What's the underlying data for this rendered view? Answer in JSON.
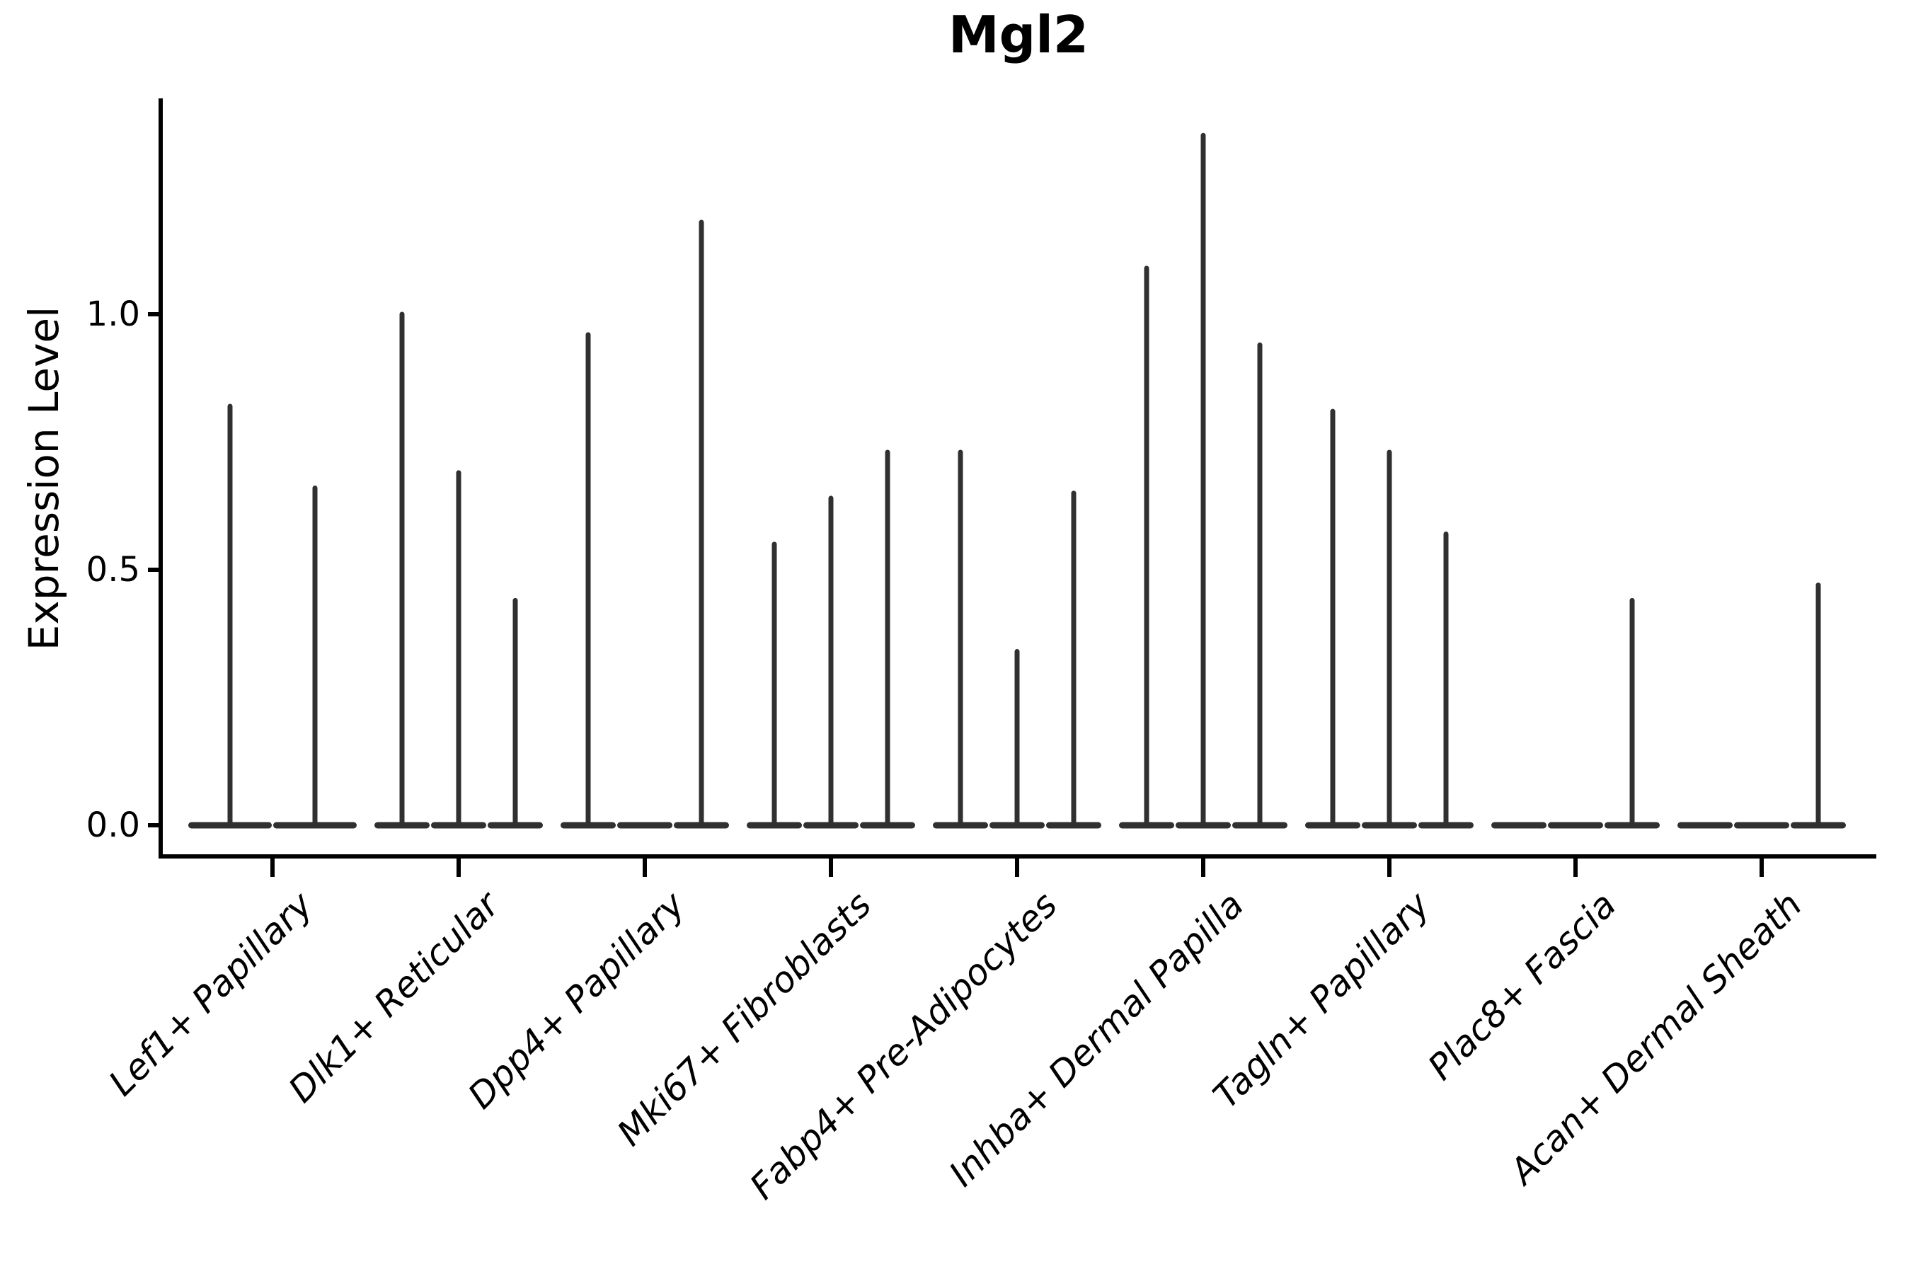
{
  "title": "Mgl2",
  "y_axis": {
    "label": "Expression Level",
    "tick_labels": [
      "0.0",
      "0.5",
      "1.0"
    ],
    "tick_values": [
      0.0,
      0.5,
      1.0
    ]
  },
  "x_axis": {
    "categories": [
      "Lef1+ Papillary",
      "Dlk1+ Reticular",
      "Dpp4+ Papillary",
      "Mki67+ Fibroblasts",
      "Fabp4+ Pre-Adipocytes",
      "Inhba+ Dermal Papilla",
      "Tagln+ Papillary",
      "Plac8+ Fascia",
      "Acan+ Dermal Sheath"
    ]
  },
  "style": {
    "violin_color": "#303030",
    "axis_color": "#000000",
    "background": "#ffffff"
  },
  "chart_data": {
    "type": "violin",
    "title": "Mgl2",
    "xlabel": "",
    "ylabel": "Expression Level",
    "ylim": [
      -0.06,
      1.42
    ],
    "y_ticks": [
      0.0,
      0.5,
      1.0
    ],
    "y_tick_labels": [
      "0.0",
      "0.5",
      "1.0"
    ],
    "grid": false,
    "legend": null,
    "x_tick_rotation_deg": 45,
    "categories": [
      "Lef1+ Papillary",
      "Dlk1+ Reticular",
      "Dpp4+ Papillary",
      "Mki67+ Fibroblasts",
      "Fabp4+ Pre-Adipocytes",
      "Inhba+ Dermal Papilla",
      "Tagln+ Papillary",
      "Plac8+ Fascia",
      "Acan+ Dermal Sheath"
    ],
    "groups": [
      {
        "category": "Lef1+ Papillary",
        "violins": [
          {
            "offset": -60,
            "halfwidth": 59,
            "peak": 0.82
          },
          {
            "offset": 60,
            "halfwidth": 59,
            "peak": 0.66
          }
        ]
      },
      {
        "category": "Dlk1+ Reticular",
        "violins": [
          {
            "offset": -80,
            "halfwidth": 39,
            "peak": 1.0
          },
          {
            "offset": 0,
            "halfwidth": 39,
            "peak": 0.69
          },
          {
            "offset": 80,
            "halfwidth": 39,
            "peak": 0.44
          }
        ]
      },
      {
        "category": "Dpp4+ Papillary",
        "violins": [
          {
            "offset": -80,
            "halfwidth": 39,
            "peak": 0.96
          },
          {
            "offset": 0,
            "halfwidth": 39,
            "peak": 0.0
          },
          {
            "offset": 80,
            "halfwidth": 39,
            "peak": 1.18
          }
        ]
      },
      {
        "category": "Mki67+ Fibroblasts",
        "violins": [
          {
            "offset": -80,
            "halfwidth": 39,
            "peak": 0.55
          },
          {
            "offset": 0,
            "halfwidth": 39,
            "peak": 0.64
          },
          {
            "offset": 80,
            "halfwidth": 39,
            "peak": 0.73
          }
        ]
      },
      {
        "category": "Fabp4+ Pre-Adipocytes",
        "violins": [
          {
            "offset": -80,
            "halfwidth": 39,
            "peak": 0.73
          },
          {
            "offset": 0,
            "halfwidth": 39,
            "peak": 0.34
          },
          {
            "offset": 80,
            "halfwidth": 39,
            "peak": 0.65
          }
        ]
      },
      {
        "category": "Inhba+ Dermal Papilla",
        "violins": [
          {
            "offset": -80,
            "halfwidth": 39,
            "peak": 1.09
          },
          {
            "offset": 0,
            "halfwidth": 39,
            "peak": 1.35
          },
          {
            "offset": 80,
            "halfwidth": 39,
            "peak": 0.94
          }
        ]
      },
      {
        "category": "Tagln+ Papillary",
        "violins": [
          {
            "offset": -80,
            "halfwidth": 39,
            "peak": 0.81
          },
          {
            "offset": 0,
            "halfwidth": 39,
            "peak": 0.73
          },
          {
            "offset": 80,
            "halfwidth": 39,
            "peak": 0.57
          }
        ]
      },
      {
        "category": "Plac8+ Fascia",
        "violins": [
          {
            "offset": -80,
            "halfwidth": 39,
            "peak": 0.0
          },
          {
            "offset": 0,
            "halfwidth": 39,
            "peak": 0.0
          },
          {
            "offset": 80,
            "halfwidth": 39,
            "peak": 0.44
          }
        ]
      },
      {
        "category": "Acan+ Dermal Sheath",
        "violins": [
          {
            "offset": -80,
            "halfwidth": 39,
            "peak": 0.0
          },
          {
            "offset": 0,
            "halfwidth": 39,
            "peak": 0.0
          },
          {
            "offset": 80,
            "halfwidth": 39,
            "peak": 0.47
          }
        ]
      }
    ]
  }
}
